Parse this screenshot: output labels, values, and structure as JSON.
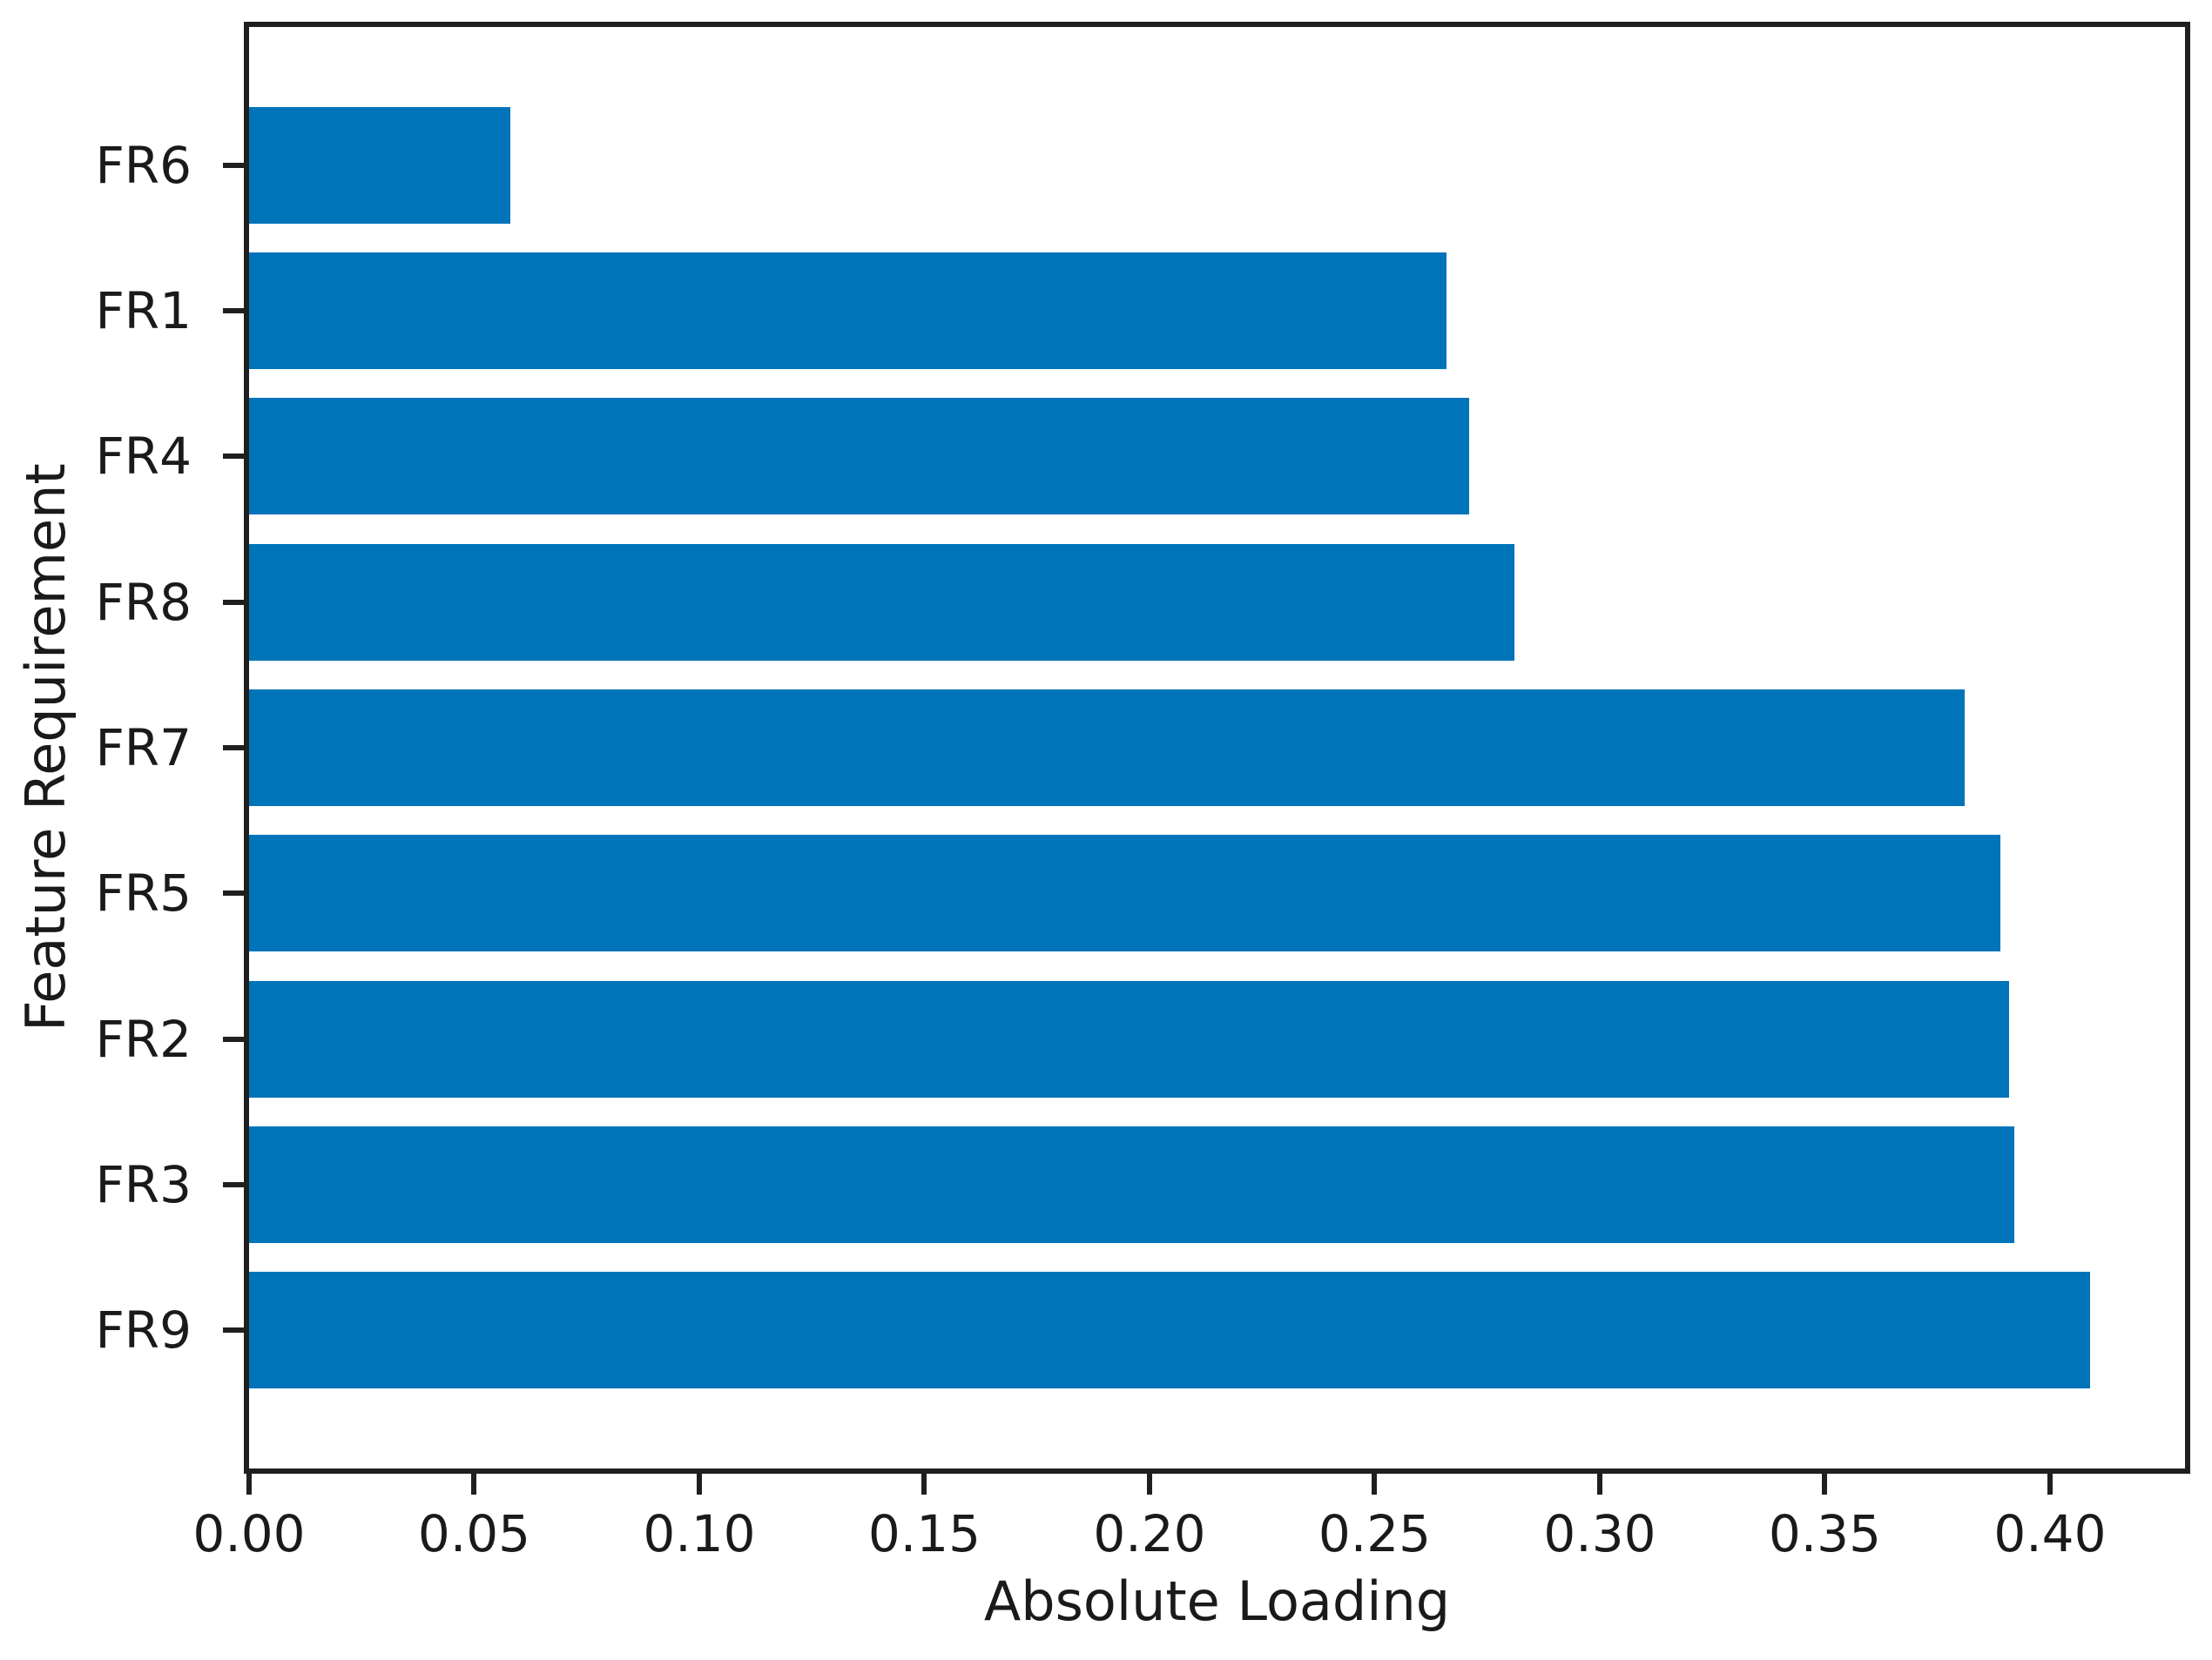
{
  "chart_data": {
    "type": "bar",
    "orientation": "horizontal",
    "title": "",
    "xlabel": "Absolute Loading",
    "ylabel": "Feature Requirement",
    "categories": [
      "FR6",
      "FR1",
      "FR4",
      "FR8",
      "FR7",
      "FR5",
      "FR2",
      "FR3",
      "FR9"
    ],
    "values": [
      0.058,
      0.266,
      0.271,
      0.281,
      0.381,
      0.389,
      0.391,
      0.392,
      0.409
    ],
    "xlim": [
      0,
      0.43
    ],
    "xtick_labels": [
      "0.00",
      "0.05",
      "0.10",
      "0.15",
      "0.20",
      "0.25",
      "0.30",
      "0.35",
      "0.40"
    ],
    "xtick_values": [
      0,
      0.05,
      0.1,
      0.15,
      0.2,
      0.25,
      0.3,
      0.35,
      0.4
    ],
    "grid": false,
    "legend_position": "none",
    "bar_color": "#0074b8",
    "spine_color": "#1f1f1f",
    "text_color": "#1a1a1a",
    "background_color": "#ffffff"
  }
}
